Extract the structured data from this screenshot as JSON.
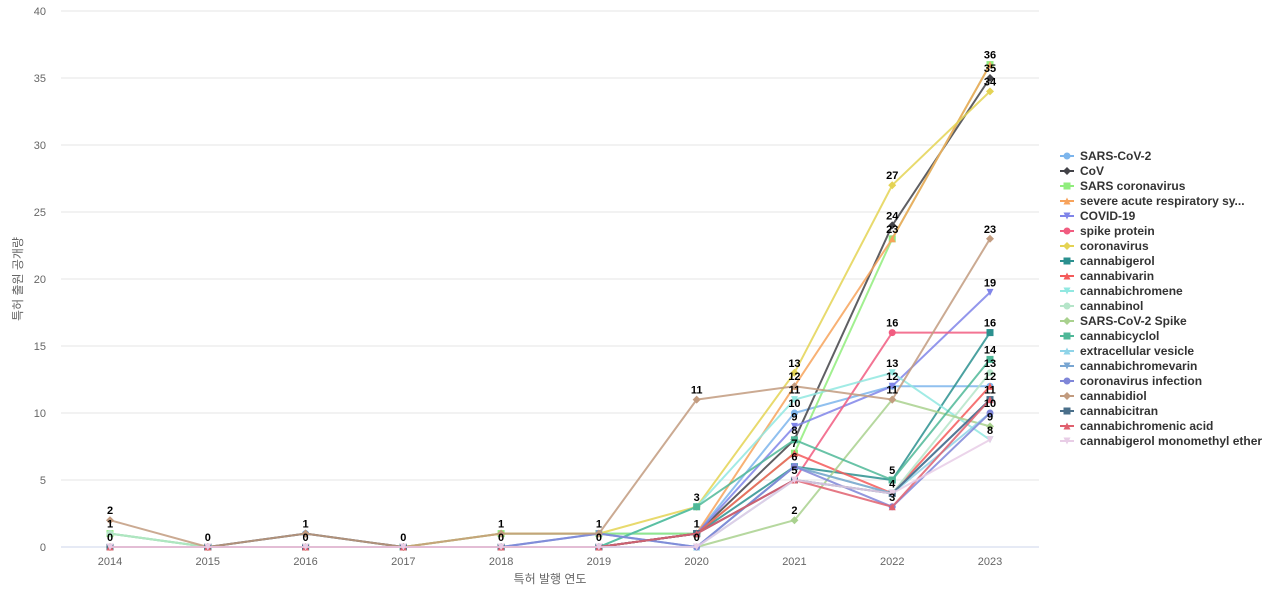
{
  "chart_data": {
    "type": "line",
    "title": "",
    "xlabel": "특허 발행 연도",
    "ylabel": "특허 출원 공개량",
    "ylim": [
      0,
      40
    ],
    "yticks": [
      0,
      5,
      10,
      15,
      20,
      25,
      30,
      35,
      40
    ],
    "legend_position": "right",
    "categories": [
      "2014",
      "2015",
      "2016",
      "2017",
      "2018",
      "2019",
      "2020",
      "2021",
      "2022",
      "2023"
    ],
    "series": [
      {
        "name": "SARS-CoV-2",
        "color": "#7cb5ec",
        "marker": "circle",
        "values": [
          1,
          0,
          1,
          0,
          1,
          1,
          1,
          10,
          12,
          12
        ]
      },
      {
        "name": "CoV",
        "color": "#434348",
        "marker": "diamond",
        "values": [
          0,
          0,
          1,
          0,
          0,
          0,
          1,
          8,
          24,
          35
        ]
      },
      {
        "name": "SARS coronavirus",
        "color": "#90ed7d",
        "marker": "square",
        "values": [
          1,
          0,
          0,
          0,
          1,
          1,
          1,
          7,
          23,
          36
        ]
      },
      {
        "name": "severe acute respiratory sy...",
        "color": "#f7a35c",
        "marker": "triangle",
        "values": [
          0,
          0,
          0,
          0,
          0,
          0,
          1,
          12,
          23,
          36
        ]
      },
      {
        "name": "COVID-19",
        "color": "#8085e9",
        "marker": "triangle-down",
        "values": [
          0,
          0,
          0,
          0,
          0,
          0,
          1,
          9,
          12,
          19
        ]
      },
      {
        "name": "spike protein",
        "color": "#f15c80",
        "marker": "circle",
        "values": [
          0,
          0,
          0,
          0,
          0,
          0,
          1,
          5,
          16,
          16
        ]
      },
      {
        "name": "coronavirus",
        "color": "#e4d354",
        "marker": "diamond",
        "values": [
          0,
          0,
          0,
          0,
          1,
          1,
          3,
          13,
          27,
          34
        ]
      },
      {
        "name": "cannabigerol",
        "color": "#2b908f",
        "marker": "square",
        "values": [
          0,
          0,
          0,
          0,
          0,
          0,
          1,
          6,
          5,
          16
        ]
      },
      {
        "name": "cannabivarin",
        "color": "#f45b5b",
        "marker": "triangle",
        "values": [
          0,
          0,
          0,
          0,
          0,
          0,
          1,
          7,
          4,
          12
        ]
      },
      {
        "name": "cannabichromene",
        "color": "#91e8e1",
        "marker": "triangle-down",
        "values": [
          0,
          0,
          0,
          0,
          0,
          0,
          3,
          11,
          13,
          8
        ]
      },
      {
        "name": "cannabinol",
        "color": "#b5e5c9",
        "marker": "circle",
        "values": [
          1,
          0,
          0,
          0,
          0,
          0,
          0,
          6,
          4,
          13
        ]
      },
      {
        "name": "SARS-CoV-2 Spike",
        "color": "#a9d18e",
        "marker": "diamond",
        "values": [
          0,
          0,
          0,
          0,
          0,
          0,
          0,
          2,
          11,
          9
        ]
      },
      {
        "name": "cannabicyclol",
        "color": "#4fb898",
        "marker": "square",
        "values": [
          0,
          0,
          0,
          0,
          0,
          0,
          3,
          8,
          5,
          14
        ]
      },
      {
        "name": "extracellular vesicle",
        "color": "#8fd4e8",
        "marker": "triangle",
        "values": [
          0,
          0,
          0,
          0,
          0,
          0,
          0,
          5,
          4,
          10
        ]
      },
      {
        "name": "cannabichromevarin",
        "color": "#79a6d2",
        "marker": "triangle-down",
        "values": [
          0,
          0,
          0,
          0,
          0,
          1,
          0,
          6,
          4,
          11
        ]
      },
      {
        "name": "coronavirus infection",
        "color": "#7f86d8",
        "marker": "circle",
        "values": [
          0,
          0,
          0,
          0,
          0,
          1,
          0,
          6,
          3,
          10
        ]
      },
      {
        "name": "cannabidiol",
        "color": "#c29b7f",
        "marker": "diamond",
        "values": [
          2,
          0,
          1,
          0,
          1,
          1,
          11,
          12,
          11,
          23
        ]
      },
      {
        "name": "cannabicitran",
        "color": "#4a6f8a",
        "marker": "square",
        "values": [
          0,
          0,
          0,
          0,
          0,
          0,
          1,
          5,
          4,
          11
        ]
      },
      {
        "name": "cannabichromenic acid",
        "color": "#e0606e",
        "marker": "triangle",
        "values": [
          0,
          0,
          0,
          0,
          0,
          0,
          1,
          5,
          3,
          11
        ]
      },
      {
        "name": "cannabigerol monomethyl ether",
        "color": "#e8cde6",
        "marker": "triangle-down",
        "values": [
          0,
          0,
          0,
          0,
          0,
          0,
          0,
          5,
          4,
          8
        ]
      }
    ],
    "data_labels": [
      {
        "x": "2014",
        "value": 2
      },
      {
        "x": "2014",
        "value": 1
      },
      {
        "x": "2014",
        "value": 0
      },
      {
        "x": "2015",
        "value": 0
      },
      {
        "x": "2016",
        "value": 1
      },
      {
        "x": "2016",
        "value": 0
      },
      {
        "x": "2017",
        "value": 0
      },
      {
        "x": "2018",
        "value": 1
      },
      {
        "x": "2018",
        "value": 0
      },
      {
        "x": "2019",
        "value": 1
      },
      {
        "x": "2019",
        "value": 0
      },
      {
        "x": "2020",
        "value": 11
      },
      {
        "x": "2020",
        "value": 3
      },
      {
        "x": "2020",
        "value": 1
      },
      {
        "x": "2020",
        "value": 0
      },
      {
        "x": "2021",
        "value": 13
      },
      {
        "x": "2021",
        "value": 12
      },
      {
        "x": "2021",
        "value": 11
      },
      {
        "x": "2021",
        "value": 10
      },
      {
        "x": "2021",
        "value": 9
      },
      {
        "x": "2021",
        "value": 8
      },
      {
        "x": "2021",
        "value": 7
      },
      {
        "x": "2021",
        "value": 6
      },
      {
        "x": "2021",
        "value": 5
      },
      {
        "x": "2021",
        "value": 2
      },
      {
        "x": "2022",
        "value": 27
      },
      {
        "x": "2022",
        "value": 24
      },
      {
        "x": "2022",
        "value": 23
      },
      {
        "x": "2022",
        "value": 16
      },
      {
        "x": "2022",
        "value": 13
      },
      {
        "x": "2022",
        "value": 12
      },
      {
        "x": "2022",
        "value": 11
      },
      {
        "x": "2022",
        "value": 5
      },
      {
        "x": "2022",
        "value": 4
      },
      {
        "x": "2022",
        "value": 3
      },
      {
        "x": "2023",
        "value": 36
      },
      {
        "x": "2023",
        "value": 35
      },
      {
        "x": "2023",
        "value": 34
      },
      {
        "x": "2023",
        "value": 23
      },
      {
        "x": "2023",
        "value": 19
      },
      {
        "x": "2023",
        "value": 16
      },
      {
        "x": "2023",
        "value": 14
      },
      {
        "x": "2023",
        "value": 13
      },
      {
        "x": "2023",
        "value": 12
      },
      {
        "x": "2023",
        "value": 11
      },
      {
        "x": "2023",
        "value": 10
      },
      {
        "x": "2023",
        "value": 9
      },
      {
        "x": "2023",
        "value": 8
      }
    ]
  }
}
